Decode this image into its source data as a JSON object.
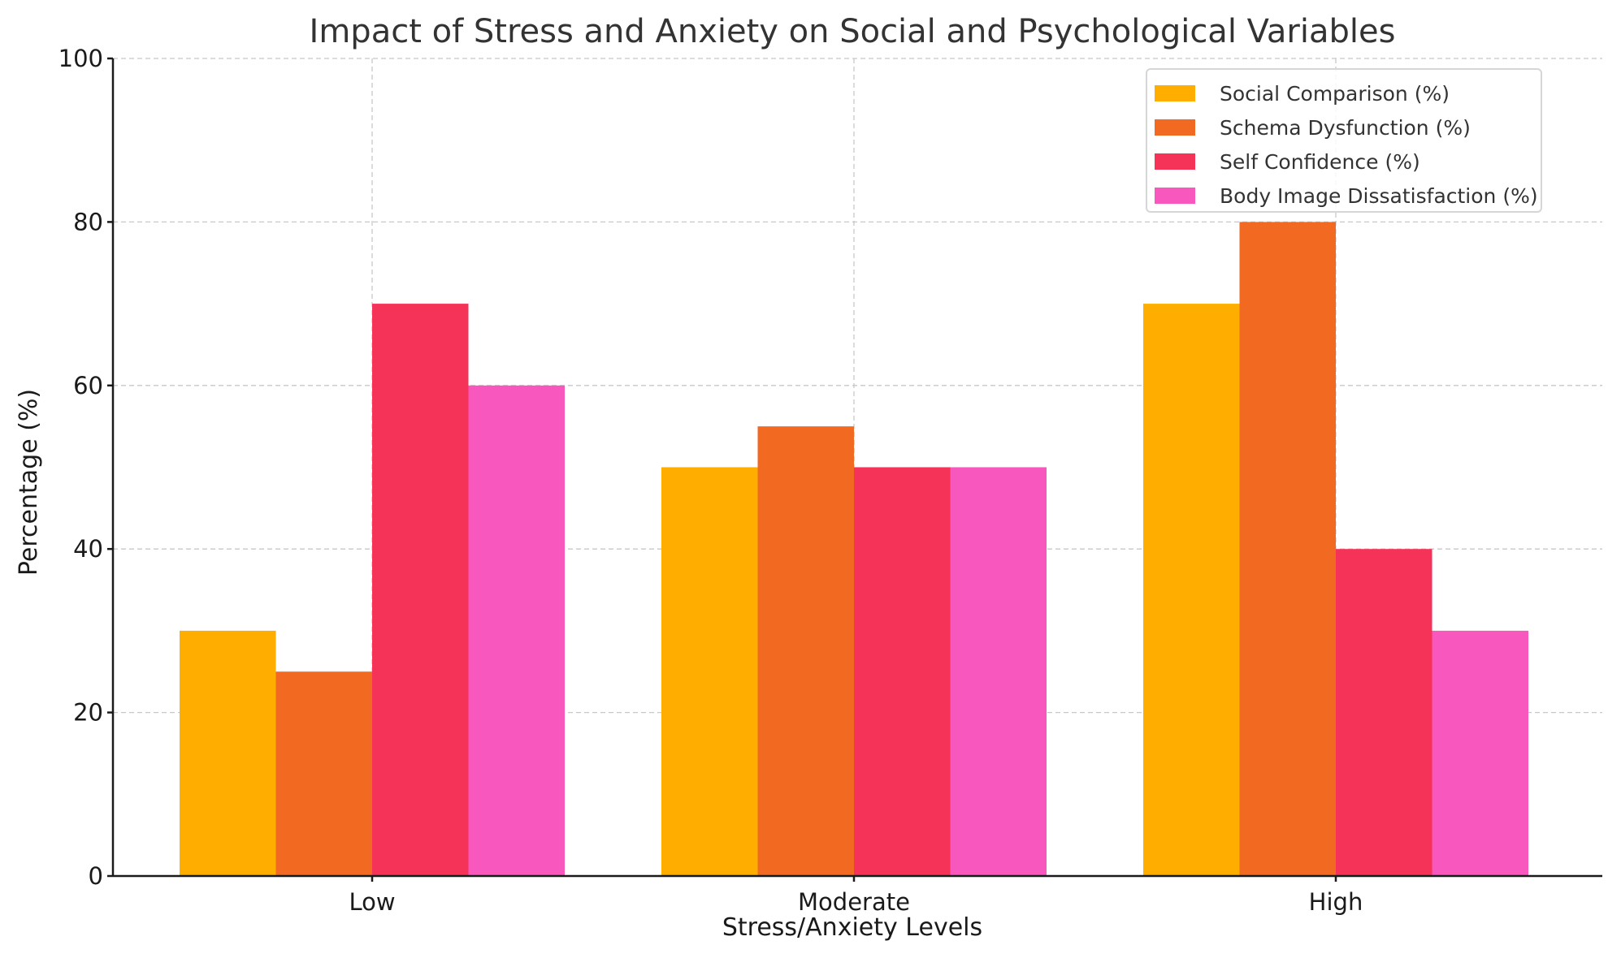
{
  "chart_data": {
    "type": "bar",
    "title": "Impact of Stress and Anxiety on Social and Psychological Variables",
    "xlabel": "Stress/Anxiety Levels",
    "ylabel": "Percentage (%)",
    "categories": [
      "Low",
      "Moderate",
      "High"
    ],
    "ylim": [
      0,
      100
    ],
    "yticks": [
      0,
      20,
      40,
      60,
      80,
      100
    ],
    "grid": true,
    "legend_position": "top-right",
    "series": [
      {
        "name": "Social Comparison (%)",
        "color": "#FFAE00",
        "values": [
          30,
          50,
          70
        ]
      },
      {
        "name": "Schema Dysfunction (%)",
        "color": "#F26A22",
        "values": [
          25,
          55,
          80
        ]
      },
      {
        "name": "Self Confidence (%)",
        "color": "#F53257",
        "values": [
          70,
          50,
          40
        ]
      },
      {
        "name": "Body Image Dissatisfaction (%)",
        "color": "#F857BE",
        "values": [
          60,
          50,
          30
        ]
      }
    ]
  }
}
